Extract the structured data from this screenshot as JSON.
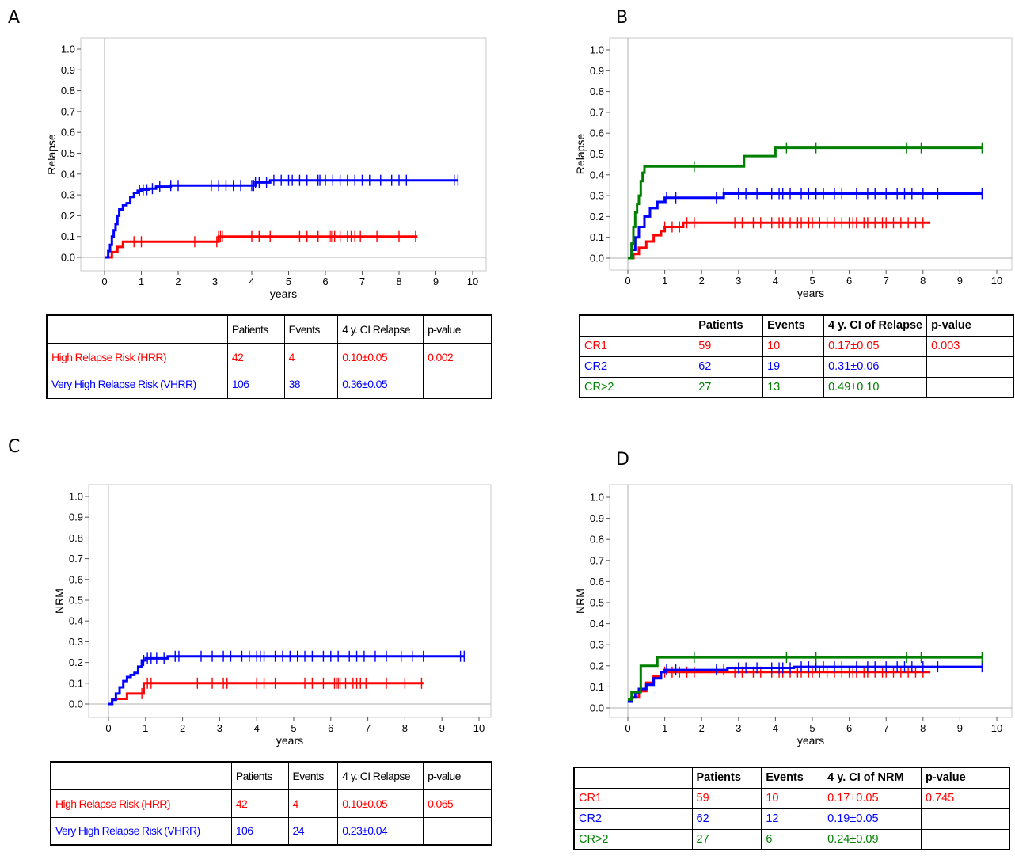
{
  "colors": {
    "red": "#ff0000",
    "blue": "#0000ff",
    "green": "#008000"
  },
  "chart_data": [
    {
      "panel": "A",
      "type": "line",
      "xlabel": "years",
      "ylabel": "Relapse",
      "xlim": [
        0,
        10
      ],
      "ylim": [
        0,
        1.0
      ],
      "xticks": [
        "0",
        "1",
        "2",
        "3",
        "4",
        "5",
        "6",
        "7",
        "8",
        "9",
        "10"
      ],
      "yticks": [
        "0.0",
        "0.1",
        "0.2",
        "0.3",
        "0.4",
        "0.5",
        "0.6",
        "0.7",
        "0.8",
        "0.9",
        "1.0"
      ],
      "series": [
        {
          "name": "High Relapse Risk (HRR)",
          "color": "red",
          "steps": [
            [
              0,
              0
            ],
            [
              0.2,
              0.025
            ],
            [
              0.35,
              0.05
            ],
            [
              0.5,
              0.075
            ],
            [
              3.1,
              0.1
            ],
            [
              8.5,
              0.1
            ]
          ],
          "censor": [
            0.8,
            1.0,
            2.45,
            3.05,
            3.1,
            3.15,
            3.2,
            4.0,
            4.2,
            4.5,
            5.3,
            5.5,
            5.8,
            6.1,
            6.15,
            6.2,
            6.25,
            6.4,
            6.6,
            6.7,
            6.8,
            6.95,
            7.4,
            8.0,
            8.45
          ]
        },
        {
          "name": "Very High Relapse Risk (VHRR)",
          "color": "blue",
          "steps": [
            [
              0,
              0
            ],
            [
              0.1,
              0.03
            ],
            [
              0.15,
              0.06
            ],
            [
              0.2,
              0.1
            ],
            [
              0.25,
              0.13
            ],
            [
              0.3,
              0.16
            ],
            [
              0.35,
              0.2
            ],
            [
              0.4,
              0.23
            ],
            [
              0.5,
              0.25
            ],
            [
              0.6,
              0.26
            ],
            [
              0.7,
              0.29
            ],
            [
              0.8,
              0.31
            ],
            [
              0.9,
              0.32
            ],
            [
              1.0,
              0.325
            ],
            [
              1.2,
              0.33
            ],
            [
              1.4,
              0.34
            ],
            [
              1.8,
              0.345
            ],
            [
              4.1,
              0.36
            ],
            [
              4.5,
              0.37
            ],
            [
              9.6,
              0.37
            ]
          ],
          "censor": [
            0.95,
            1.05,
            1.15,
            1.3,
            1.5,
            1.8,
            2.0,
            2.9,
            3.1,
            3.3,
            3.5,
            3.7,
            4.0,
            4.05,
            4.1,
            4.2,
            4.4,
            4.6,
            4.8,
            5.0,
            5.1,
            5.3,
            5.5,
            5.8,
            5.85,
            6.0,
            6.2,
            6.4,
            6.6,
            6.8,
            7.0,
            7.2,
            7.5,
            7.8,
            8.0,
            8.2,
            9.5,
            9.6
          ]
        }
      ]
    },
    {
      "panel": "B",
      "type": "line",
      "xlabel": "years",
      "ylabel": "Relapse",
      "xlim": [
        0,
        10
      ],
      "ylim": [
        0,
        1.0
      ],
      "xticks": [
        "0",
        "1",
        "2",
        "3",
        "4",
        "5",
        "6",
        "7",
        "8",
        "9",
        "10"
      ],
      "yticks": [
        "0.0",
        "0.1",
        "0.2",
        "0.3",
        "0.4",
        "0.5",
        "0.6",
        "0.7",
        "0.8",
        "0.9",
        "1.0"
      ],
      "series": [
        {
          "name": "CR1",
          "color": "red",
          "steps": [
            [
              0,
              0
            ],
            [
              0.15,
              0.02
            ],
            [
              0.3,
              0.05
            ],
            [
              0.5,
              0.08
            ],
            [
              0.7,
              0.11
            ],
            [
              0.9,
              0.13
            ],
            [
              1.0,
              0.15
            ],
            [
              1.5,
              0.17
            ],
            [
              8.2,
              0.17
            ]
          ],
          "censor": [
            1.0,
            1.2,
            1.4,
            1.6,
            1.8,
            2.9,
            3.1,
            3.4,
            3.6,
            3.9,
            4.1,
            4.2,
            4.4,
            4.6,
            4.7,
            4.9,
            5.0,
            5.2,
            5.4,
            5.6,
            5.8,
            6.0,
            6.1,
            6.2,
            6.4,
            6.5,
            6.7,
            6.9,
            7.0,
            7.2,
            7.4,
            7.6,
            7.8,
            8.0
          ]
        },
        {
          "name": "CR2",
          "color": "blue",
          "steps": [
            [
              0,
              0
            ],
            [
              0.1,
              0.04
            ],
            [
              0.2,
              0.1
            ],
            [
              0.3,
              0.15
            ],
            [
              0.45,
              0.2
            ],
            [
              0.6,
              0.24
            ],
            [
              0.8,
              0.27
            ],
            [
              1.0,
              0.29
            ],
            [
              2.6,
              0.31
            ],
            [
              9.6,
              0.31
            ]
          ],
          "censor": [
            1.05,
            1.3,
            2.4,
            2.6,
            3.0,
            3.2,
            3.5,
            3.9,
            4.1,
            4.2,
            4.4,
            4.7,
            4.9,
            5.1,
            5.3,
            5.6,
            5.8,
            6.2,
            6.5,
            6.7,
            7.0,
            7.3,
            7.5,
            7.7,
            8.0,
            8.4,
            9.6
          ]
        },
        {
          "name": "CR>2",
          "color": "green",
          "steps": [
            [
              0,
              0
            ],
            [
              0.1,
              0.07
            ],
            [
              0.15,
              0.15
            ],
            [
              0.2,
              0.22
            ],
            [
              0.25,
              0.26
            ],
            [
              0.3,
              0.3
            ],
            [
              0.35,
              0.37
            ],
            [
              0.4,
              0.41
            ],
            [
              0.45,
              0.44
            ],
            [
              3.15,
              0.49
            ],
            [
              4.0,
              0.53
            ],
            [
              9.6,
              0.53
            ]
          ],
          "censor": [
            1.8,
            4.3,
            5.1,
            7.55,
            7.95,
            9.6
          ]
        }
      ]
    },
    {
      "panel": "C",
      "type": "line",
      "xlabel": "years",
      "ylabel": "NRM",
      "xlim": [
        0,
        10
      ],
      "ylim": [
        0,
        1.0
      ],
      "xticks": [
        "0",
        "1",
        "2",
        "3",
        "4",
        "5",
        "6",
        "7",
        "8",
        "9",
        "10"
      ],
      "yticks": [
        "0.0",
        "0.1",
        "0.2",
        "0.3",
        "0.4",
        "0.5",
        "0.6",
        "0.7",
        "0.8",
        "0.9",
        "1.0"
      ],
      "series": [
        {
          "name": "High Relapse Risk (HRR)",
          "color": "red",
          "steps": [
            [
              0,
              0
            ],
            [
              0.1,
              0.025
            ],
            [
              0.5,
              0.05
            ],
            [
              0.95,
              0.1
            ],
            [
              8.5,
              0.1
            ]
          ],
          "censor": [
            0.9,
            1.05,
            1.15,
            2.4,
            2.8,
            3.1,
            3.2,
            4.0,
            4.2,
            4.5,
            5.3,
            5.5,
            5.8,
            6.1,
            6.15,
            6.2,
            6.25,
            6.4,
            6.6,
            6.7,
            6.8,
            6.95,
            7.5,
            8.0,
            8.45
          ]
        },
        {
          "name": "Very High Relapse Risk (VHRR)",
          "color": "blue",
          "steps": [
            [
              0,
              0
            ],
            [
              0.1,
              0.02
            ],
            [
              0.2,
              0.05
            ],
            [
              0.3,
              0.08
            ],
            [
              0.4,
              0.11
            ],
            [
              0.5,
              0.13
            ],
            [
              0.6,
              0.14
            ],
            [
              0.7,
              0.15
            ],
            [
              0.8,
              0.18
            ],
            [
              0.9,
              0.21
            ],
            [
              1.0,
              0.22
            ],
            [
              1.6,
              0.23
            ],
            [
              9.6,
              0.23
            ]
          ],
          "censor": [
            0.95,
            1.05,
            1.15,
            1.3,
            1.5,
            1.8,
            1.9,
            2.5,
            2.8,
            3.1,
            3.3,
            3.6,
            3.8,
            4.0,
            4.1,
            4.2,
            4.5,
            4.7,
            4.9,
            5.1,
            5.3,
            5.5,
            5.8,
            6.0,
            6.2,
            6.5,
            6.7,
            6.9,
            7.2,
            7.5,
            7.9,
            8.2,
            8.5,
            9.5,
            9.6
          ]
        }
      ]
    },
    {
      "panel": "D",
      "type": "line",
      "xlabel": "years",
      "ylabel": "NRM",
      "xlim": [
        0,
        10
      ],
      "ylim": [
        0,
        1.0
      ],
      "xticks": [
        "0",
        "1",
        "2",
        "3",
        "4",
        "5",
        "6",
        "7",
        "8",
        "9",
        "10"
      ],
      "yticks": [
        "0.0",
        "0.1",
        "0.2",
        "0.3",
        "0.4",
        "0.5",
        "0.6",
        "0.7",
        "0.8",
        "0.9",
        "1.0"
      ],
      "series": [
        {
          "name": "CR1",
          "color": "red",
          "steps": [
            [
              0,
              0.03
            ],
            [
              0.1,
              0.05
            ],
            [
              0.3,
              0.08
            ],
            [
              0.5,
              0.12
            ],
            [
              0.7,
              0.15
            ],
            [
              0.9,
              0.17
            ],
            [
              8.2,
              0.17
            ]
          ],
          "censor": [
            1.0,
            1.2,
            1.4,
            1.6,
            1.8,
            2.9,
            3.1,
            3.4,
            3.6,
            3.9,
            4.1,
            4.2,
            4.4,
            4.6,
            4.7,
            4.9,
            5.0,
            5.2,
            5.4,
            5.6,
            5.8,
            6.0,
            6.1,
            6.2,
            6.4,
            6.5,
            6.7,
            6.9,
            7.0,
            7.2,
            7.4,
            7.6,
            7.8,
            8.0
          ]
        },
        {
          "name": "CR2",
          "color": "blue",
          "steps": [
            [
              0,
              0.03
            ],
            [
              0.1,
              0.05
            ],
            [
              0.2,
              0.07
            ],
            [
              0.3,
              0.09
            ],
            [
              0.5,
              0.11
            ],
            [
              0.7,
              0.14
            ],
            [
              0.9,
              0.17
            ],
            [
              1.0,
              0.18
            ],
            [
              2.7,
              0.19
            ],
            [
              4.5,
              0.195
            ],
            [
              9.6,
              0.195
            ]
          ],
          "censor": [
            1.05,
            1.3,
            2.4,
            2.6,
            3.0,
            3.2,
            3.5,
            3.9,
            4.1,
            4.2,
            4.4,
            4.7,
            4.9,
            5.1,
            5.3,
            5.6,
            5.8,
            6.2,
            6.5,
            6.7,
            7.0,
            7.3,
            7.5,
            7.7,
            8.0,
            8.4,
            9.6
          ]
        },
        {
          "name": "CR>2",
          "color": "green",
          "steps": [
            [
              0,
              0.04
            ],
            [
              0.1,
              0.075
            ],
            [
              0.35,
              0.2
            ],
            [
              0.8,
              0.24
            ],
            [
              9.6,
              0.24
            ]
          ],
          "censor": [
            1.8,
            4.3,
            5.1,
            7.55,
            7.95,
            9.6
          ]
        }
      ]
    }
  ],
  "panels": [
    {
      "letter": "A",
      "table": {
        "headers": [
          "",
          "Patients",
          "Events",
          "4 y. CI Relapse",
          "p-value"
        ],
        "rows": [
          {
            "label": "High Relapse Risk (HRR)",
            "patients": "42",
            "events": "4",
            "ci": "0.10±0.05",
            "p": "0.002"
          },
          {
            "label": "Very High Relapse Risk (VHRR)",
            "patients": "106",
            "events": "38",
            "ci": "0.36±0.05",
            "p": ""
          }
        ]
      }
    },
    {
      "letter": "B",
      "table": {
        "headers": [
          "",
          "Patients",
          "Events",
          "4 y. CI of Relapse",
          "p-value"
        ],
        "rows": [
          {
            "label": "CR1",
            "patients": "59",
            "events": "10",
            "ci": "0.17±0.05",
            "p": "0.003"
          },
          {
            "label": "CR2",
            "patients": "62",
            "events": "19",
            "ci": "0.31±0.06",
            "p": ""
          },
          {
            "label": "CR>2",
            "patients": "27",
            "events": "13",
            "ci": "0.49±0.10",
            "p": ""
          }
        ]
      }
    },
    {
      "letter": "C",
      "table": {
        "headers": [
          "",
          "Patients",
          "Events",
          "4 y. CI Relapse",
          "p-value"
        ],
        "rows": [
          {
            "label": "High Relapse Risk (HRR)",
            "patients": "42",
            "events": "4",
            "ci": "0.10±0.05",
            "p": "0.065"
          },
          {
            "label": "Very High Relapse Risk (VHRR)",
            "patients": "106",
            "events": "24",
            "ci": "0.23±0.04",
            "p": ""
          }
        ]
      }
    },
    {
      "letter": "D",
      "table": {
        "headers": [
          "",
          "Patients",
          "Events",
          "4 y. CI of NRM",
          "p-value"
        ],
        "rows": [
          {
            "label": "CR1",
            "patients": "59",
            "events": "10",
            "ci": "0.17±0.05",
            "p": "0.745"
          },
          {
            "label": "CR2",
            "patients": "62",
            "events": "12",
            "ci": "0.19±0.05",
            "p": ""
          },
          {
            "label": "CR>2",
            "patients": "27",
            "events": "6",
            "ci": "0.24±0.09",
            "p": ""
          }
        ]
      }
    }
  ]
}
